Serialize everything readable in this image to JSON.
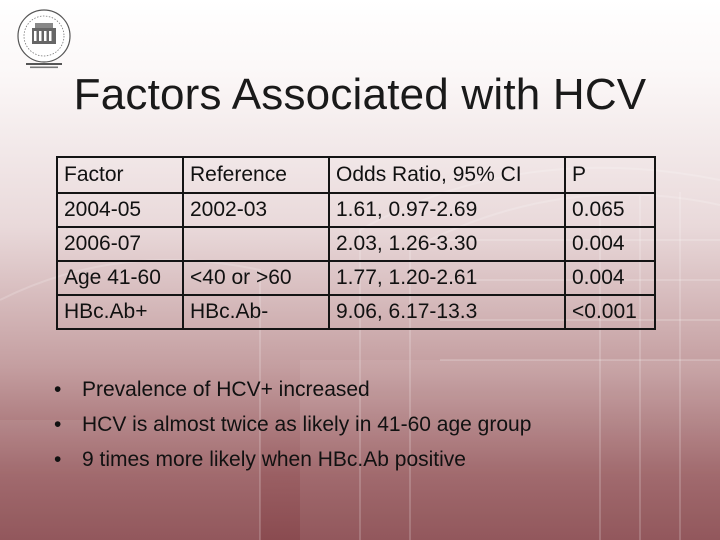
{
  "title": "Factors Associated with HCV",
  "table": {
    "headers": [
      "Factor",
      "Reference",
      "Odds Ratio, 95% CI",
      "P"
    ],
    "rows": [
      [
        "2004-05",
        "2002-03",
        "1.61, 0.97-2.69",
        "0.065"
      ],
      [
        "2006-07",
        "",
        "2.03, 1.26-3.30",
        "0.004"
      ],
      [
        "Age 41-60",
        "<40 or >60",
        "1.77, 1.20-2.61",
        "0.004"
      ],
      [
        "HBc.Ab+",
        "HBc.Ab-",
        "9.06, 6.17-13.3",
        "<0.001"
      ]
    ]
  },
  "bullets": [
    "Prevalence of HCV+ increased",
    "HCV is almost twice as likely in 41-60 age group",
    "9 times more likely when HBc.Ab positive"
  ],
  "bullet_glyph": "•",
  "colors": {
    "background_top": "#ffffff",
    "background_bottom": "#8a4b50",
    "text": "#111111",
    "border": "#141414"
  },
  "icons": {
    "logo": "university-seal-icon"
  }
}
